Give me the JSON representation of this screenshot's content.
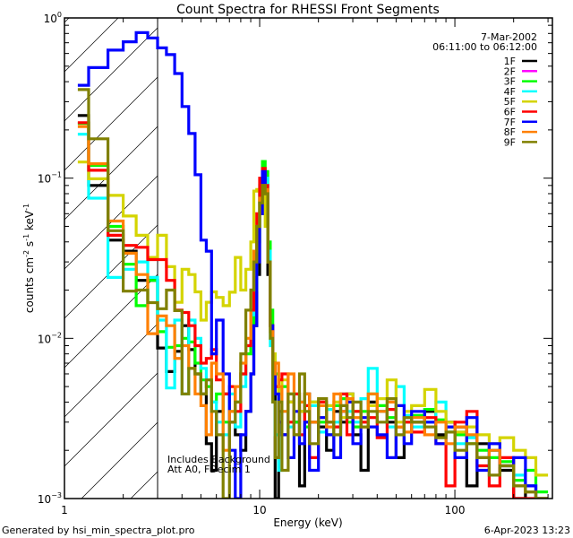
{
  "chart_data": {
    "type": "line",
    "title": "Count Spectra for RHESSI Front Segments",
    "xlabel": "Energy (keV)",
    "ylabel_parts": [
      "counts cm",
      "-2",
      " s",
      "-1",
      " keV",
      "-1"
    ],
    "xscale": "log",
    "yscale": "log",
    "xlim": [
      1,
      316
    ],
    "ylim": [
      0.001,
      1
    ],
    "x_ticks": [
      "1",
      "10",
      "100"
    ],
    "y_ticks": [
      {
        "base": "10",
        "exp": "0"
      },
      {
        "base": "10",
        "exp": "−1"
      },
      {
        "base": "10",
        "exp": "−2"
      },
      {
        "base": "10",
        "exp": "−3"
      }
    ],
    "shaded_region_keV": [
      1,
      3
    ],
    "annotations": {
      "date": "7-Mar-2002",
      "time_range": "06:11:00 to 06:12:00",
      "background_note": "Includes Background",
      "attenuator_note": "Att A0, FDecim 1"
    },
    "legend_position": "top-right",
    "bin_edges_keV": [
      1.17,
      1.33,
      1.67,
      2,
      2.33,
      2.67,
      3,
      3.33,
      3.67,
      4,
      4.33,
      4.67,
      5,
      5.33,
      5.67,
      6,
      6.5,
      7,
      7.5,
      8,
      8.5,
      9,
      9.33,
      9.67,
      10,
      10.33,
      10.67,
      11,
      11.33,
      11.67,
      12,
      12.5,
      13,
      14,
      15,
      16,
      17,
      18,
      20,
      22,
      24,
      26,
      28,
      30,
      33,
      36,
      40,
      45,
      50,
      55,
      60,
      70,
      80,
      90,
      100,
      115,
      130,
      150,
      170,
      200,
      230,
      260,
      300
    ],
    "series": [
      {
        "name": "1F",
        "color": "#000000",
        "values": [
          0.246,
          0.09,
          0.041,
          0.035,
          0.023,
          0.023,
          0.0087,
          0.0062,
          0.0083,
          0.012,
          0.0085,
          0.006,
          0.0045,
          0.0022,
          0.0015,
          0.0035,
          0.0045,
          0.003,
          0.0025,
          0.002,
          0.0035,
          0.006,
          0.012,
          0.025,
          0.06,
          0.09,
          0.07,
          0.025,
          0.012,
          0.006,
          0.0008,
          0.0035,
          0.0025,
          0.004,
          0.003,
          0.0012,
          0.0045,
          0.003,
          0.0028,
          0.002,
          0.0035,
          0.003,
          0.0045,
          0.0025,
          0.0015,
          0.004,
          0.0035,
          0.003,
          0.0018,
          0.0032,
          0.003,
          0.0035,
          0.0025,
          0.003,
          0.0028,
          0.0012,
          0.0022,
          0.002,
          0.0015,
          0.0008,
          0.0012,
          0.001
        ]
      },
      {
        "name": "2F",
        "color": "#ff00ff",
        "values": []
      },
      {
        "name": "3F",
        "color": "#00ff00",
        "values": [
          0.22,
          0.12,
          0.05,
          0.029,
          0.016,
          0.023,
          0.011,
          0.0088,
          0.009,
          0.01,
          0.0095,
          0.007,
          0.0055,
          0.005,
          0.004,
          0.0045,
          0.003,
          0.0035,
          0.004,
          0.006,
          0.008,
          0.012,
          0.02,
          0.04,
          0.08,
          0.127,
          0.11,
          0.04,
          0.015,
          0.008,
          0.006,
          0.004,
          0.005,
          0.0045,
          0.003,
          0.0035,
          0.0028,
          0.004,
          0.003,
          0.0025,
          0.0038,
          0.0042,
          0.003,
          0.0028,
          0.0035,
          0.0045,
          0.0038,
          0.0032,
          0.0028,
          0.003,
          0.0033,
          0.0036,
          0.0031,
          0.0028,
          0.0025,
          0.0022,
          0.002,
          0.0018,
          0.0017,
          0.0013,
          0.0015,
          0.0011
        ]
      },
      {
        "name": "4F",
        "color": "#00ffff",
        "values": [
          0.188,
          0.075,
          0.024,
          0.027,
          0.03,
          0.024,
          0.013,
          0.0049,
          0.013,
          0.0045,
          0.013,
          0.01,
          0.0065,
          0.0055,
          0.004,
          0.003,
          0.0025,
          0.0045,
          0.0028,
          0.005,
          0.009,
          0.014,
          0.025,
          0.05,
          0.09,
          0.11,
          0.1,
          0.035,
          0.009,
          0.004,
          0.0025,
          0.0015,
          0.0035,
          0.0028,
          0.0045,
          0.004,
          0.003,
          0.0038,
          0.0026,
          0.0036,
          0.003,
          0.0045,
          0.0035,
          0.003,
          0.0042,
          0.0065,
          0.0035,
          0.0028,
          0.005,
          0.0033,
          0.0028,
          0.003,
          0.004,
          0.0026,
          0.0022,
          0.0024,
          0.0018,
          0.002,
          0.0016,
          0.0014,
          0.0012,
          0.001
        ]
      },
      {
        "name": "5F",
        "color": "#d4d400",
        "values": [
          0.126,
          0.099,
          0.078,
          0.058,
          0.044,
          0.032,
          0.044,
          0.028,
          0.0168,
          0.027,
          0.025,
          0.0195,
          0.013,
          0.0168,
          0.0195,
          0.018,
          0.016,
          0.0194,
          0.032,
          0.02,
          0.027,
          0.04,
          0.083,
          0.085,
          0.07,
          0.1,
          0.05,
          0.03,
          0.012,
          0.008,
          0.005,
          0.0045,
          0.0055,
          0.004,
          0.0045,
          0.0035,
          0.003,
          0.004,
          0.0032,
          0.0038,
          0.004,
          0.0032,
          0.0045,
          0.0035,
          0.003,
          0.0038,
          0.0042,
          0.0055,
          0.003,
          0.0035,
          0.0038,
          0.0048,
          0.0035,
          0.003,
          0.0026,
          0.0028,
          0.0025,
          0.0022,
          0.0024,
          0.002,
          0.0018,
          0.0014
        ]
      },
      {
        "name": "6F",
        "color": "#ff0000",
        "values": [
          0.222,
          0.112,
          0.044,
          0.038,
          0.037,
          0.031,
          0.031,
          0.023,
          0.015,
          0.0145,
          0.012,
          0.009,
          0.007,
          0.0075,
          0.0085,
          0.0055,
          0.0045,
          0.005,
          0.0035,
          0.006,
          0.009,
          0.015,
          0.03,
          0.06,
          0.1,
          0.115,
          0.09,
          0.03,
          0.012,
          0.0065,
          0.005,
          0.0055,
          0.006,
          0.003,
          0.0045,
          0.0025,
          0.0038,
          0.0018,
          0.004,
          0.003,
          0.0028,
          0.0045,
          0.0025,
          0.0035,
          0.003,
          0.0032,
          0.0024,
          0.0036,
          0.0028,
          0.003,
          0.0026,
          0.0032,
          0.0022,
          0.0012,
          0.003,
          0.0035,
          0.0016,
          0.0012,
          0.0018,
          0.001,
          0.0009,
          0.0007
        ]
      },
      {
        "name": "7F",
        "color": "#0000ff",
        "values": [
          0.38,
          0.49,
          0.63,
          0.71,
          0.81,
          0.75,
          0.65,
          0.59,
          0.45,
          0.28,
          0.19,
          0.105,
          0.041,
          0.035,
          0.008,
          0.013,
          0.006,
          0.002,
          0.0005,
          0.0025,
          0.0035,
          0.006,
          0.012,
          0.03,
          0.06,
          0.11,
          0.08,
          0.03,
          0.012,
          0.007,
          0.0045,
          0.003,
          0.0025,
          0.0018,
          0.0035,
          0.0022,
          0.003,
          0.0015,
          0.0032,
          0.0025,
          0.0018,
          0.0035,
          0.004,
          0.0022,
          0.0032,
          0.0028,
          0.0025,
          0.0018,
          0.0038,
          0.0022,
          0.0035,
          0.003,
          0.0022,
          0.0028,
          0.0018,
          0.0032,
          0.0015,
          0.0022,
          0.0016,
          0.0018,
          0.0012,
          0.001
        ]
      },
      {
        "name": "8F",
        "color": "#ff8000",
        "values": [
          0.21,
          0.123,
          0.054,
          0.034,
          0.025,
          0.0107,
          0.0138,
          0.012,
          0.0075,
          0.009,
          0.0065,
          0.0045,
          0.0038,
          0.0025,
          0.007,
          0.006,
          0.002,
          0.0035,
          0.005,
          0.007,
          0.01,
          0.02,
          0.035,
          0.05,
          0.075,
          0.09,
          0.085,
          0.03,
          0.011,
          0.006,
          0.007,
          0.005,
          0.0035,
          0.006,
          0.0025,
          0.004,
          0.0045,
          0.003,
          0.0038,
          0.0028,
          0.0045,
          0.0035,
          0.0042,
          0.0032,
          0.0028,
          0.0045,
          0.0035,
          0.004,
          0.0028,
          0.0026,
          0.0032,
          0.0025,
          0.003,
          0.0022,
          0.0028,
          0.0025,
          0.0018,
          0.002,
          0.0016,
          0.0012,
          0.0011,
          0.0009
        ]
      },
      {
        "name": "9F",
        "color": "#808000",
        "values": [
          0.357,
          0.176,
          0.047,
          0.0197,
          0.02,
          0.0167,
          0.0153,
          0.02,
          0.0149,
          0.0045,
          0.0065,
          0.006,
          0.0045,
          0.0055,
          0.0035,
          0.0025,
          0.0008,
          0.003,
          0.004,
          0.008,
          0.015,
          0.02,
          0.03,
          0.05,
          0.07,
          0.09,
          0.08,
          0.03,
          0.01,
          0.004,
          0.0018,
          0.004,
          0.0015,
          0.0045,
          0.0025,
          0.006,
          0.0035,
          0.0022,
          0.0042,
          0.003,
          0.0025,
          0.0038,
          0.0032,
          0.004,
          0.0028,
          0.0035,
          0.003,
          0.0042,
          0.0025,
          0.0032,
          0.003,
          0.0028,
          0.0024,
          0.0026,
          0.002,
          0.0022,
          0.0018,
          0.0014,
          0.0016,
          0.0012,
          0.0011,
          0.0009
        ]
      }
    ]
  },
  "footer": {
    "generated_by": "Generated by hsi_min_spectra_plot.pro",
    "timestamp": "6-Apr-2023 13:23"
  }
}
